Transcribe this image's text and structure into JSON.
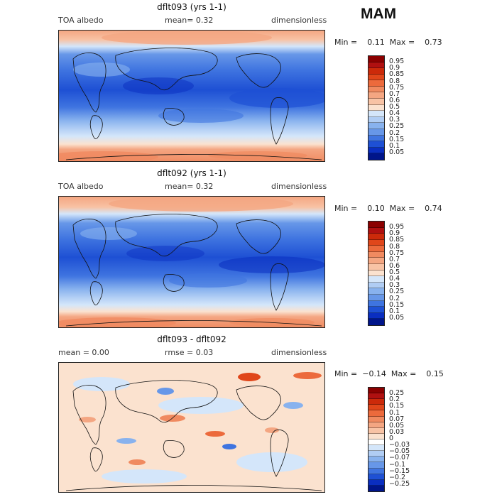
{
  "season": "MAM",
  "colors": {
    "abs_scale": [
      "#8b0000",
      "#b01010",
      "#cc2a0a",
      "#e0461a",
      "#ec6a3c",
      "#f08a60",
      "#f4a682",
      "#f8c3a5",
      "#fbe2cf",
      "#d4e6fa",
      "#b0cdf4",
      "#88b2ee",
      "#6797e8",
      "#3f74e0",
      "#1e50d4",
      "#0a2ec0",
      "#00158a"
    ],
    "diff_scale": [
      "#8b0000",
      "#b01010",
      "#cc2a0a",
      "#e0461a",
      "#ec6a3c",
      "#f08a60",
      "#f4a682",
      "#f8c3a5",
      "#fbe2cf",
      "#ffffff",
      "#d4e6fa",
      "#b0cdf4",
      "#88b2ee",
      "#6797e8",
      "#3f74e0",
      "#1e50d4",
      "#0a2ec0",
      "#00158a"
    ]
  },
  "panels": [
    {
      "title": "dflt093 (yrs 1-1)",
      "left_label": "TOA albedo",
      "mean_text": "mean=    0.32",
      "units": "dimensionless",
      "minmax_text": "Min =    0.11  Max =    0.73",
      "levels": [
        "0.95",
        "0.9",
        "0.85",
        "0.8",
        "0.75",
        "0.7",
        "0.6",
        "0.5",
        "0.4",
        "0.3",
        "0.25",
        "0.2",
        "0.15",
        "0.1",
        "0.05"
      ]
    },
    {
      "title": "dflt092 (yrs 1-1)",
      "left_label": "TOA albedo",
      "mean_text": "mean=    0.32",
      "units": "dimensionless",
      "minmax_text": "Min =    0.10  Max =    0.74",
      "levels": [
        "0.95",
        "0.9",
        "0.85",
        "0.8",
        "0.75",
        "0.7",
        "0.6",
        "0.5",
        "0.4",
        "0.3",
        "0.25",
        "0.2",
        "0.15",
        "0.1",
        "0.05"
      ]
    },
    {
      "title": "dflt093 - dflt092",
      "left_label": "mean =    0.00",
      "mean_text": "rmse =    0.03",
      "units": "dimensionless",
      "minmax_text": "Min =  −0.14  Max =    0.15",
      "levels": [
        "0.25",
        "0.2",
        "0.15",
        "0.1",
        "0.07",
        "0.05",
        "0.03",
        "0",
        "−0.03",
        "−0.05",
        "−0.07",
        "−0.1",
        "−0.15",
        "−0.2",
        "−0.25"
      ]
    }
  ]
}
